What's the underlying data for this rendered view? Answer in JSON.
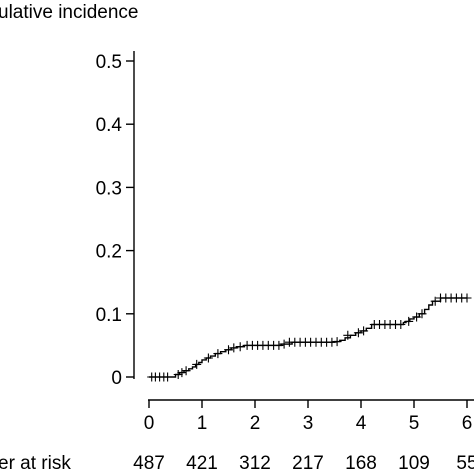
{
  "chart_data": {
    "type": "line",
    "title": "",
    "xlabel": "",
    "ylabel": "ulative incidence",
    "xlim": [
      0,
      6
    ],
    "ylim": [
      0,
      0.5
    ],
    "x_ticks": [
      0,
      1,
      2,
      3,
      4,
      5,
      6
    ],
    "x_tick_labels": [
      "0",
      "1",
      "2",
      "3",
      "4",
      "5",
      "6"
    ],
    "y_ticks": [
      0,
      0.1,
      0.2,
      0.3,
      0.4,
      0.5
    ],
    "y_tick_labels": [
      "0",
      "0.1",
      "0.2",
      "0.3",
      "0.4",
      "0.5"
    ],
    "grid": false,
    "censor_marker": "+",
    "series": [
      {
        "x": [
          0,
          0.42,
          0.5,
          0.58,
          0.66,
          0.75,
          0.82,
          0.88,
          0.94,
          1.0,
          1.08,
          1.16,
          1.25,
          1.35,
          1.45,
          1.55,
          1.65,
          1.8,
          2.0,
          2.3,
          2.5,
          2.7,
          3.0,
          3.3,
          3.5,
          3.6,
          3.7,
          3.8,
          3.9,
          4.0,
          4.1,
          4.2,
          4.5,
          4.7,
          4.8,
          4.85,
          4.92,
          5.0,
          5.1,
          5.2,
          5.28,
          5.35,
          5.5,
          6.0
        ],
        "y": [
          0,
          0,
          0.004,
          0.007,
          0.01,
          0.013,
          0.016,
          0.02,
          0.023,
          0.027,
          0.03,
          0.033,
          0.037,
          0.04,
          0.043,
          0.046,
          0.048,
          0.05,
          0.05,
          0.05,
          0.052,
          0.055,
          0.055,
          0.055,
          0.056,
          0.058,
          0.062,
          0.066,
          0.07,
          0.073,
          0.077,
          0.083,
          0.083,
          0.083,
          0.086,
          0.088,
          0.092,
          0.095,
          0.1,
          0.107,
          0.114,
          0.12,
          0.125,
          0.125
        ]
      }
    ],
    "censored": {
      "x": [
        0.05,
        0.12,
        0.2,
        0.28,
        0.35,
        0.55,
        0.62,
        0.7,
        0.9,
        1.12,
        1.3,
        1.5,
        1.6,
        1.72,
        1.85,
        1.95,
        2.05,
        2.15,
        2.25,
        2.35,
        2.45,
        2.55,
        2.65,
        2.75,
        2.85,
        2.95,
        3.05,
        3.15,
        3.25,
        3.35,
        3.45,
        3.55,
        3.75,
        3.95,
        4.05,
        4.25,
        4.35,
        4.45,
        4.55,
        4.65,
        4.75,
        4.9,
        5.05,
        5.15,
        5.4,
        5.5,
        5.6,
        5.7,
        5.8,
        5.9,
        6.0
      ],
      "y": [
        0,
        0,
        0,
        0,
        0,
        0.004,
        0.007,
        0.01,
        0.02,
        0.03,
        0.037,
        0.043,
        0.046,
        0.048,
        0.05,
        0.05,
        0.05,
        0.05,
        0.05,
        0.05,
        0.05,
        0.052,
        0.055,
        0.055,
        0.055,
        0.055,
        0.055,
        0.055,
        0.055,
        0.055,
        0.055,
        0.056,
        0.066,
        0.07,
        0.073,
        0.083,
        0.083,
        0.083,
        0.083,
        0.083,
        0.083,
        0.088,
        0.095,
        0.1,
        0.12,
        0.125,
        0.125,
        0.125,
        0.125,
        0.125,
        0.125
      ]
    },
    "risk_table": {
      "label": "er at risk",
      "values": [
        "487",
        "421",
        "312",
        "217",
        "168",
        "109",
        "55"
      ]
    }
  }
}
